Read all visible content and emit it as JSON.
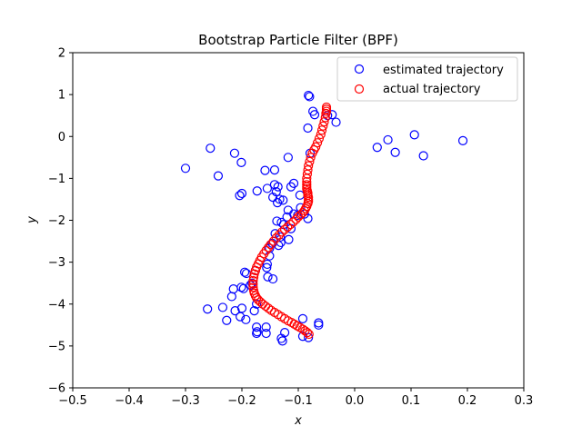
{
  "chart_data": {
    "type": "scatter",
    "title": "Bootstrap Particle Filter (BPF)",
    "xlabel": "x",
    "ylabel": "y",
    "xlim": [
      -0.5,
      0.3
    ],
    "ylim": [
      -6,
      2
    ],
    "xticks": [
      "−0.5",
      "−0.4",
      "−0.3",
      "−0.2",
      "−0.1",
      "0.0",
      "0.1",
      "0.2",
      "0.3"
    ],
    "yticks": [
      "−6",
      "−5",
      "−4",
      "−3",
      "−2",
      "−1",
      "0",
      "1",
      "2"
    ],
    "legend_position": "top-right",
    "grid": false,
    "series": [
      {
        "name": "estimated trajectory",
        "color": "#0000ff",
        "x": [
          -0.082,
          -0.08,
          -0.074,
          -0.071,
          -0.048,
          -0.04,
          -0.033,
          -0.083,
          -0.079,
          -0.3,
          -0.256,
          -0.242,
          -0.213,
          -0.201,
          -0.118,
          -0.142,
          -0.159,
          -0.142,
          -0.108,
          -0.113,
          -0.136,
          -0.139,
          -0.155,
          -0.173,
          -0.2,
          -0.204,
          -0.145,
          -0.133,
          -0.127,
          -0.137,
          -0.097,
          -0.096,
          -0.118,
          -0.108,
          -0.12,
          -0.138,
          -0.13,
          -0.126,
          -0.113,
          -0.141,
          -0.132,
          -0.117,
          -0.101,
          -0.089,
          -0.083,
          -0.146,
          -0.131,
          -0.135,
          -0.151,
          -0.151,
          -0.155,
          -0.156,
          -0.176,
          -0.195,
          -0.192,
          -0.154,
          -0.145,
          -0.182,
          -0.185,
          -0.201,
          -0.215,
          -0.197,
          -0.218,
          -0.174,
          -0.261,
          -0.234,
          -0.212,
          -0.2,
          -0.178,
          -0.174,
          -0.203,
          -0.193,
          -0.227,
          -0.157,
          -0.157,
          -0.173,
          -0.174,
          -0.124,
          -0.13,
          -0.128,
          -0.092,
          -0.092,
          -0.082,
          -0.064,
          -0.064,
          0.04,
          0.059,
          0.072,
          0.106,
          0.122,
          0.192
        ],
        "y": [
          0.98,
          0.95,
          0.6,
          0.52,
          0.5,
          0.52,
          0.34,
          0.2,
          -0.4,
          -0.76,
          -0.28,
          -0.94,
          -0.4,
          -0.62,
          -0.5,
          -0.8,
          -0.81,
          -1.15,
          -1.12,
          -1.2,
          -1.2,
          -1.32,
          -1.24,
          -1.3,
          -1.36,
          -1.41,
          -1.45,
          -1.5,
          -1.52,
          -1.58,
          -1.4,
          -1.7,
          -1.76,
          -1.85,
          -1.92,
          -2.02,
          -2.05,
          -2.1,
          -2.2,
          -2.32,
          -2.4,
          -2.46,
          -1.88,
          -1.85,
          -1.96,
          -2.55,
          -2.53,
          -2.6,
          -2.67,
          -2.85,
          -3.05,
          -3.13,
          -3.2,
          -3.24,
          -3.27,
          -3.35,
          -3.4,
          -3.5,
          -3.55,
          -3.6,
          -3.64,
          -3.63,
          -3.82,
          -4.0,
          -4.12,
          -4.08,
          -4.16,
          -4.1,
          -4.16,
          -4.55,
          -4.3,
          -4.37,
          -4.39,
          -4.55,
          -4.7,
          -4.66,
          -4.7,
          -4.68,
          -4.82,
          -4.88,
          -4.77,
          -4.35,
          -4.8,
          -4.5,
          -4.45,
          -0.26,
          -0.08,
          -0.38,
          0.04,
          -0.46,
          -0.1
        ]
      },
      {
        "name": "actual trajectory",
        "color": "#ff0000",
        "x": [
          -0.05,
          -0.05,
          -0.05,
          -0.051,
          -0.052,
          -0.054,
          -0.056,
          -0.058,
          -0.06,
          -0.063,
          -0.066,
          -0.069,
          -0.072,
          -0.075,
          -0.078,
          -0.08,
          -0.082,
          -0.083,
          -0.084,
          -0.085,
          -0.085,
          -0.085,
          -0.085,
          -0.085,
          -0.084,
          -0.083,
          -0.083,
          -0.082,
          -0.082,
          -0.082,
          -0.083,
          -0.085,
          -0.087,
          -0.089,
          -0.092,
          -0.096,
          -0.1,
          -0.104,
          -0.109,
          -0.114,
          -0.119,
          -0.124,
          -0.129,
          -0.134,
          -0.139,
          -0.144,
          -0.149,
          -0.153,
          -0.157,
          -0.161,
          -0.165,
          -0.168,
          -0.171,
          -0.174,
          -0.176,
          -0.178,
          -0.179,
          -0.18,
          -0.18,
          -0.18,
          -0.179,
          -0.178,
          -0.176,
          -0.174,
          -0.171,
          -0.167,
          -0.163,
          -0.158,
          -0.153,
          -0.148,
          -0.142,
          -0.136,
          -0.13,
          -0.124,
          -0.118,
          -0.112,
          -0.107,
          -0.102,
          -0.097,
          -0.092,
          -0.088,
          -0.084,
          -0.081
        ],
        "y": [
          0.7,
          0.65,
          0.6,
          0.55,
          0.45,
          0.35,
          0.25,
          0.15,
          0.05,
          -0.05,
          -0.15,
          -0.25,
          -0.32,
          -0.4,
          -0.5,
          -0.6,
          -0.7,
          -0.8,
          -0.9,
          -1.0,
          -1.08,
          -1.15,
          -1.2,
          -1.25,
          -1.3,
          -1.35,
          -1.4,
          -1.45,
          -1.5,
          -1.55,
          -1.6,
          -1.67,
          -1.72,
          -1.77,
          -1.82,
          -1.87,
          -1.92,
          -1.98,
          -2.04,
          -2.1,
          -2.16,
          -2.22,
          -2.28,
          -2.35,
          -2.42,
          -2.5,
          -2.58,
          -2.65,
          -2.72,
          -2.8,
          -2.88,
          -2.96,
          -3.04,
          -3.12,
          -3.2,
          -3.28,
          -3.36,
          -3.44,
          -3.52,
          -3.6,
          -3.68,
          -3.74,
          -3.8,
          -3.85,
          -3.9,
          -3.95,
          -4.0,
          -4.05,
          -4.1,
          -4.15,
          -4.2,
          -4.25,
          -4.3,
          -4.35,
          -4.4,
          -4.44,
          -4.48,
          -4.52,
          -4.56,
          -4.6,
          -4.64,
          -4.68,
          -4.72
        ]
      }
    ]
  }
}
